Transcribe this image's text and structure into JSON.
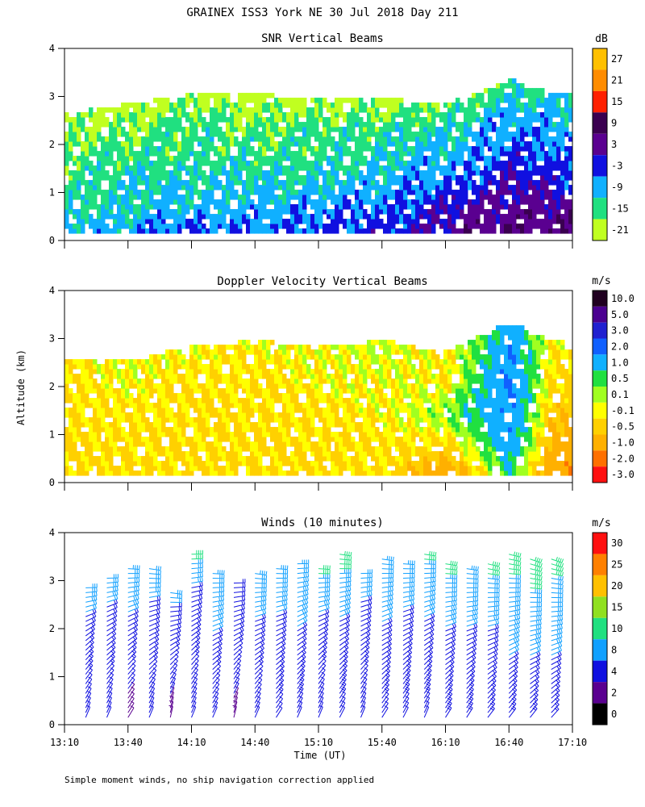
{
  "title": "GRAINEX ISS3 York NE  30 Jul 2018 Day 211",
  "footnote": "Simple moment winds, no ship navigation correction applied",
  "shared_axes": {
    "ylabel": "Altitude (km)",
    "yticks": [
      "0",
      "1",
      "2",
      "3",
      "4"
    ],
    "xlabel": "Time (UT)",
    "xticks": [
      "13:10",
      "13:40",
      "14:10",
      "14:40",
      "15:10",
      "15:40",
      "16:10",
      "16:40",
      "17:10"
    ]
  },
  "chart_data": [
    {
      "type": "heatmap",
      "title": "SNR Vertical Beams",
      "colorbar": {
        "unit": "dB",
        "labels": [
          "27",
          "21",
          "15",
          "9",
          "3",
          "-3",
          "-9",
          "-15",
          "-21"
        ],
        "colors": [
          "#ffc000",
          "#ff8c00",
          "#ff2000",
          "#3a0050",
          "#5a0090",
          "#1010e0",
          "#10b0ff",
          "#20e080",
          "#c0ff20"
        ]
      },
      "xlim": [
        "13:10",
        "17:10"
      ],
      "ylim": [
        0,
        4
      ],
      "profiles": [
        {
          "time": "13:10",
          "top_km": 2.6,
          "snr_db": [
            -9,
            -12,
            -15,
            -15,
            -18,
            -21
          ]
        },
        {
          "time": "13:40",
          "top_km": 2.8,
          "snr_db": [
            -6,
            -12,
            -12,
            -15,
            -18,
            -21
          ]
        },
        {
          "time": "14:10",
          "top_km": 3.0,
          "snr_db": [
            -3,
            -9,
            -12,
            -15,
            -15,
            -21
          ]
        },
        {
          "time": "14:40",
          "top_km": 3.0,
          "snr_db": [
            -6,
            -9,
            -12,
            -15,
            -18,
            -21
          ]
        },
        {
          "time": "15:10",
          "top_km": 2.9,
          "snr_db": [
            -3,
            -6,
            -12,
            -15,
            -15,
            -21
          ]
        },
        {
          "time": "15:40",
          "top_km": 2.9,
          "snr_db": [
            -3,
            -6,
            -9,
            -12,
            -15,
            -21
          ]
        },
        {
          "time": "16:10",
          "top_km": 2.8,
          "snr_db": [
            3,
            0,
            -6,
            -9,
            -12,
            -18
          ]
        },
        {
          "time": "16:40",
          "top_km": 3.3,
          "snr_db": [
            6,
            3,
            0,
            -6,
            -9,
            -15
          ]
        },
        {
          "time": "17:00",
          "top_km": 3.0,
          "snr_db": [
            6,
            3,
            -3,
            -6,
            -9,
            -12
          ]
        }
      ]
    },
    {
      "type": "heatmap",
      "title": "Doppler Velocity Vertical Beams",
      "colorbar": {
        "unit": "m/s",
        "labels": [
          "10.0",
          "5.0",
          "3.0",
          "2.0",
          "1.0",
          "0.5",
          "0.1",
          "-0.1",
          "-0.5",
          "-1.0",
          "-2.0",
          "-3.0"
        ],
        "colors": [
          "#200020",
          "#4a0090",
          "#2020d0",
          "#1060ff",
          "#10b0ff",
          "#20e040",
          "#a0ff20",
          "#ffff00",
          "#ffd000",
          "#ffb000",
          "#ff7000",
          "#ff1010"
        ]
      },
      "xlim": [
        "13:10",
        "17:10"
      ],
      "ylim": [
        0,
        4
      ],
      "profiles": [
        {
          "time": "13:10",
          "top_km": 2.5,
          "w_ms": [
            -0.4,
            -0.4,
            -0.4,
            -0.3,
            -0.3
          ]
        },
        {
          "time": "13:40",
          "top_km": 2.5,
          "w_ms": [
            -0.4,
            -0.4,
            -0.3,
            -0.2,
            -0.1
          ]
        },
        {
          "time": "14:10",
          "top_km": 2.8,
          "w_ms": [
            -0.4,
            -0.4,
            -0.4,
            -0.3,
            -0.2
          ]
        },
        {
          "time": "14:40",
          "top_km": 2.9,
          "w_ms": [
            -0.4,
            -0.4,
            -0.4,
            -0.3,
            -0.2
          ]
        },
        {
          "time": "15:10",
          "top_km": 2.8,
          "w_ms": [
            -0.4,
            -0.4,
            -0.3,
            -0.2,
            -0.1
          ]
        },
        {
          "time": "15:40",
          "top_km": 2.9,
          "w_ms": [
            -0.3,
            -0.3,
            -0.2,
            -0.1,
            0.0
          ]
        },
        {
          "time": "16:10",
          "top_km": 2.7,
          "w_ms": [
            -1.5,
            -0.5,
            0.3,
            -0.3,
            -0.2
          ]
        },
        {
          "time": "16:40",
          "top_km": 3.3,
          "w_ms": [
            0.5,
            1.2,
            1.5,
            1.5,
            1.0
          ]
        },
        {
          "time": "17:00",
          "top_km": 2.9,
          "w_ms": [
            -1.5,
            -1.0,
            -0.6,
            -0.4,
            -0.2
          ]
        }
      ]
    },
    {
      "type": "wind_barbs",
      "title": "Winds (10 minutes)",
      "colorbar": {
        "unit": "m/s",
        "labels": [
          "30",
          "25",
          "20",
          "15",
          "10",
          "8",
          "4",
          "2",
          "0"
        ],
        "colors": [
          "#ff1010",
          "#ff8000",
          "#ffc000",
          "#90e020",
          "#20e080",
          "#10a0ff",
          "#1010e0",
          "#5a0090",
          "#000000"
        ]
      },
      "xlim": [
        "13:10",
        "17:10"
      ],
      "ylim": [
        0,
        4
      ],
      "profiles": [
        {
          "time": "13:20",
          "top_km": 2.9,
          "speed_ms": [
            3,
            3,
            4,
            5,
            6,
            7
          ],
          "dir_deg": [
            200,
            210,
            220,
            230,
            250,
            270
          ]
        },
        {
          "time": "13:30",
          "top_km": 3.1,
          "speed_ms": [
            3,
            3,
            4,
            5,
            6,
            8
          ],
          "dir_deg": [
            200,
            210,
            225,
            235,
            250,
            270
          ]
        },
        {
          "time": "13:40",
          "top_km": 3.3,
          "speed_ms": [
            2,
            3,
            4,
            5,
            7,
            9
          ],
          "dir_deg": [
            210,
            215,
            225,
            240,
            255,
            275
          ]
        },
        {
          "time": "13:50",
          "top_km": 3.3,
          "speed_ms": [
            3,
            3,
            4,
            5,
            6,
            8
          ],
          "dir_deg": [
            200,
            210,
            230,
            245,
            260,
            280
          ]
        },
        {
          "time": "14:00",
          "top_km": 2.8,
          "speed_ms": [
            2,
            3,
            3,
            4,
            5,
            7
          ],
          "dir_deg": [
            190,
            200,
            220,
            240,
            260,
            280
          ]
        },
        {
          "time": "14:10",
          "top_km": 3.6,
          "speed_ms": [
            3,
            3,
            4,
            5,
            6,
            10
          ],
          "dir_deg": [
            200,
            210,
            225,
            240,
            260,
            270
          ]
        },
        {
          "time": "14:20",
          "top_km": 3.2,
          "speed_ms": [
            3,
            3,
            4,
            6,
            7,
            9
          ],
          "dir_deg": [
            200,
            215,
            230,
            245,
            260,
            275
          ]
        },
        {
          "time": "14:30",
          "top_km": 3.0,
          "speed_ms": [
            2,
            3,
            3,
            4,
            5,
            6
          ],
          "dir_deg": [
            190,
            205,
            220,
            240,
            255,
            270
          ]
        },
        {
          "time": "14:40",
          "top_km": 3.2,
          "speed_ms": [
            3,
            3,
            4,
            5,
            7,
            9
          ],
          "dir_deg": [
            200,
            215,
            230,
            245,
            260,
            280
          ]
        },
        {
          "time": "14:50",
          "top_km": 3.3,
          "speed_ms": [
            3,
            4,
            4,
            5,
            7,
            9
          ],
          "dir_deg": [
            210,
            220,
            230,
            245,
            260,
            275
          ]
        },
        {
          "time": "15:00",
          "top_km": 3.4,
          "speed_ms": [
            3,
            4,
            4,
            6,
            7,
            9
          ],
          "dir_deg": [
            200,
            215,
            230,
            240,
            255,
            270
          ]
        },
        {
          "time": "15:10",
          "top_km": 3.3,
          "speed_ms": [
            3,
            3,
            4,
            5,
            7,
            10
          ],
          "dir_deg": [
            200,
            210,
            225,
            240,
            260,
            275
          ]
        },
        {
          "time": "15:20",
          "top_km": 3.6,
          "speed_ms": [
            3,
            4,
            4,
            6,
            8,
            10
          ],
          "dir_deg": [
            205,
            215,
            230,
            245,
            260,
            280
          ]
        },
        {
          "time": "15:30",
          "top_km": 3.2,
          "speed_ms": [
            3,
            3,
            4,
            5,
            6,
            8
          ],
          "dir_deg": [
            200,
            210,
            225,
            240,
            255,
            270
          ]
        },
        {
          "time": "15:40",
          "top_km": 3.5,
          "speed_ms": [
            3,
            4,
            5,
            6,
            7,
            9
          ],
          "dir_deg": [
            210,
            220,
            235,
            245,
            260,
            280
          ]
        },
        {
          "time": "15:50",
          "top_km": 3.4,
          "speed_ms": [
            3,
            4,
            4,
            5,
            7,
            9
          ],
          "dir_deg": [
            205,
            215,
            230,
            245,
            260,
            275
          ]
        },
        {
          "time": "16:00",
          "top_km": 3.6,
          "speed_ms": [
            3,
            4,
            5,
            6,
            7,
            10
          ],
          "dir_deg": [
            200,
            215,
            230,
            245,
            260,
            280
          ]
        },
        {
          "time": "16:10",
          "top_km": 3.4,
          "speed_ms": [
            4,
            4,
            5,
            6,
            8,
            10
          ],
          "dir_deg": [
            210,
            220,
            235,
            250,
            265,
            280
          ]
        },
        {
          "time": "16:20",
          "top_km": 3.3,
          "speed_ms": [
            4,
            4,
            5,
            6,
            7,
            9
          ],
          "dir_deg": [
            210,
            220,
            235,
            250,
            265,
            280
          ]
        },
        {
          "time": "16:30",
          "top_km": 3.4,
          "speed_ms": [
            4,
            5,
            5,
            6,
            8,
            10
          ],
          "dir_deg": [
            215,
            225,
            240,
            255,
            270,
            285
          ]
        },
        {
          "time": "16:40",
          "top_km": 3.6,
          "speed_ms": [
            4,
            5,
            6,
            7,
            8,
            11
          ],
          "dir_deg": [
            215,
            225,
            240,
            255,
            270,
            285
          ]
        },
        {
          "time": "16:50",
          "top_km": 3.5,
          "speed_ms": [
            4,
            5,
            6,
            7,
            9,
            11
          ],
          "dir_deg": [
            215,
            230,
            245,
            260,
            275,
            290
          ]
        },
        {
          "time": "17:00",
          "top_km": 3.5,
          "speed_ms": [
            4,
            5,
            6,
            7,
            8,
            10
          ],
          "dir_deg": [
            220,
            230,
            245,
            260,
            275,
            290
          ]
        }
      ]
    }
  ]
}
